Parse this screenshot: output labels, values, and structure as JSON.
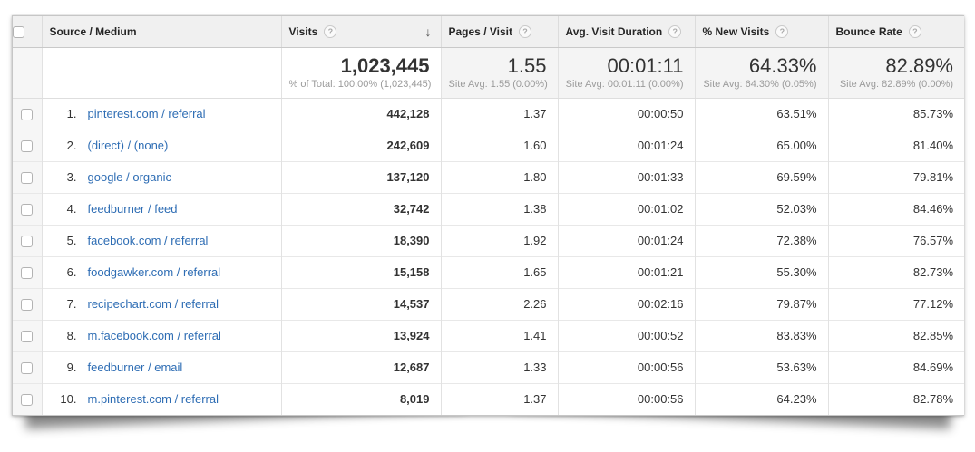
{
  "header": {
    "source_medium": "Source / Medium",
    "visits": "Visits",
    "pages_visit": "Pages / Visit",
    "avg_duration": "Avg. Visit Duration",
    "new_visits": "% New Visits",
    "bounce_rate": "Bounce Rate"
  },
  "icons": {
    "help": "?",
    "sort_descending": "↓"
  },
  "colors": {
    "link": "#2e6db4",
    "header_bg": "#f0f0f0",
    "sorted_col_bg": "#f9f9f9"
  },
  "summary": {
    "visits": "1,023,445",
    "visits_sub": "% of Total: 100.00% (1,023,445)",
    "pages_visit": "1.55",
    "pages_visit_sub": "Site Avg: 1.55 (0.00%)",
    "avg_duration": "00:01:11",
    "avg_duration_sub": "Site Avg: 00:01:11 (0.00%)",
    "new_visits": "64.33%",
    "new_visits_sub": "Site Avg: 64.30% (0.05%)",
    "bounce_rate": "82.89%",
    "bounce_rate_sub": "Site Avg: 82.89% (0.00%)"
  },
  "rows": [
    {
      "rank": "1.",
      "source": "pinterest.com / referral",
      "visits": "442,128",
      "pages_visit": "1.37",
      "avg_duration": "00:00:50",
      "new_visits": "63.51%",
      "bounce_rate": "85.73%"
    },
    {
      "rank": "2.",
      "source": "(direct) / (none)",
      "visits": "242,609",
      "pages_visit": "1.60",
      "avg_duration": "00:01:24",
      "new_visits": "65.00%",
      "bounce_rate": "81.40%"
    },
    {
      "rank": "3.",
      "source": "google / organic",
      "visits": "137,120",
      "pages_visit": "1.80",
      "avg_duration": "00:01:33",
      "new_visits": "69.59%",
      "bounce_rate": "79.81%"
    },
    {
      "rank": "4.",
      "source": "feedburner / feed",
      "visits": "32,742",
      "pages_visit": "1.38",
      "avg_duration": "00:01:02",
      "new_visits": "52.03%",
      "bounce_rate": "84.46%"
    },
    {
      "rank": "5.",
      "source": "facebook.com / referral",
      "visits": "18,390",
      "pages_visit": "1.92",
      "avg_duration": "00:01:24",
      "new_visits": "72.38%",
      "bounce_rate": "76.57%"
    },
    {
      "rank": "6.",
      "source": "foodgawker.com / referral",
      "visits": "15,158",
      "pages_visit": "1.65",
      "avg_duration": "00:01:21",
      "new_visits": "55.30%",
      "bounce_rate": "82.73%"
    },
    {
      "rank": "7.",
      "source": "recipechart.com / referral",
      "visits": "14,537",
      "pages_visit": "2.26",
      "avg_duration": "00:02:16",
      "new_visits": "79.87%",
      "bounce_rate": "77.12%"
    },
    {
      "rank": "8.",
      "source": "m.facebook.com / referral",
      "visits": "13,924",
      "pages_visit": "1.41",
      "avg_duration": "00:00:52",
      "new_visits": "83.83%",
      "bounce_rate": "82.85%"
    },
    {
      "rank": "9.",
      "source": "feedburner / email",
      "visits": "12,687",
      "pages_visit": "1.33",
      "avg_duration": "00:00:56",
      "new_visits": "53.63%",
      "bounce_rate": "84.69%"
    },
    {
      "rank": "10.",
      "source": "m.pinterest.com / referral",
      "visits": "8,019",
      "pages_visit": "1.37",
      "avg_duration": "00:00:56",
      "new_visits": "64.23%",
      "bounce_rate": "82.78%"
    }
  ]
}
